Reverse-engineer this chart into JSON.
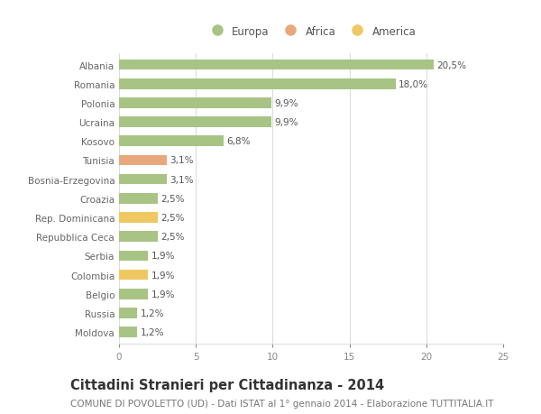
{
  "categories": [
    "Albania",
    "Romania",
    "Polonia",
    "Ucraina",
    "Kosovo",
    "Tunisia",
    "Bosnia-Erzegovina",
    "Croazia",
    "Rep. Dominicana",
    "Repubblica Ceca",
    "Serbia",
    "Colombia",
    "Belgio",
    "Russia",
    "Moldova"
  ],
  "values": [
    20.5,
    18.0,
    9.9,
    9.9,
    6.8,
    3.1,
    3.1,
    2.5,
    2.5,
    2.5,
    1.9,
    1.9,
    1.9,
    1.2,
    1.2
  ],
  "labels": [
    "20,5%",
    "18,0%",
    "9,9%",
    "9,9%",
    "6,8%",
    "3,1%",
    "3,1%",
    "2,5%",
    "2,5%",
    "2,5%",
    "1,9%",
    "1,9%",
    "1,9%",
    "1,2%",
    "1,2%"
  ],
  "colors": [
    "#a8c484",
    "#a8c484",
    "#a8c484",
    "#a8c484",
    "#a8c484",
    "#e8a87c",
    "#a8c484",
    "#a8c484",
    "#f0c862",
    "#a8c484",
    "#a8c484",
    "#f0c862",
    "#a8c484",
    "#a8c484",
    "#a8c484"
  ],
  "legend_labels": [
    "Europa",
    "Africa",
    "America"
  ],
  "legend_colors": [
    "#a8c484",
    "#e8a87c",
    "#f0c862"
  ],
  "xlim": [
    0,
    25
  ],
  "xticks": [
    0,
    5,
    10,
    15,
    20,
    25
  ],
  "title": "Cittadini Stranieri per Cittadinanza - 2014",
  "subtitle": "COMUNE DI POVOLETTO (UD) - Dati ISTAT al 1° gennaio 2014 - Elaborazione TUTTITALIA.IT",
  "bg_color": "#ffffff",
  "grid_color": "#dddddd",
  "bar_height": 0.55,
  "title_fontsize": 10.5,
  "subtitle_fontsize": 7.5,
  "label_fontsize": 7.5,
  "tick_fontsize": 7.5,
  "legend_fontsize": 8.5
}
